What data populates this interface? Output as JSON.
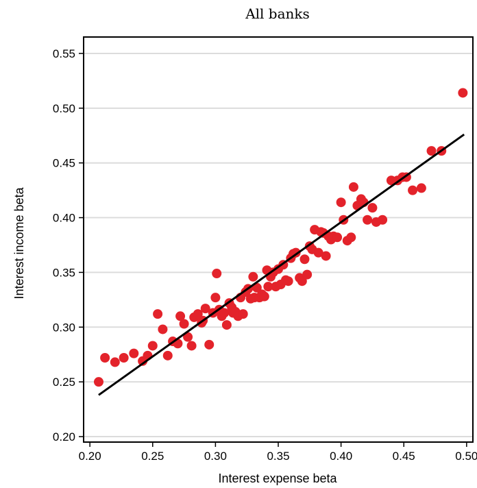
{
  "chart_data": {
    "type": "scatter",
    "title": "All banks",
    "xlabel": "Interest expense beta",
    "ylabel": "Interest income beta",
    "xlim": [
      0.195,
      0.505
    ],
    "ylim": [
      0.195,
      0.565
    ],
    "x_ticks": [
      0.2,
      0.25,
      0.3,
      0.35,
      0.4,
      0.45,
      0.5
    ],
    "x_tick_labels": [
      "0.20",
      "0.25",
      "0.30",
      "0.35",
      "0.40",
      "0.45",
      "0.50"
    ],
    "y_ticks": [
      0.2,
      0.25,
      0.3,
      0.35,
      0.4,
      0.45,
      0.5,
      0.55
    ],
    "y_tick_labels": [
      "0.20",
      "0.25",
      "0.30",
      "0.35",
      "0.40",
      "0.45",
      "0.50",
      "0.55"
    ],
    "grid": "horizontal",
    "point_color": "#e3232b",
    "line_color": "#000000",
    "points": [
      [
        0.207,
        0.25
      ],
      [
        0.212,
        0.272
      ],
      [
        0.22,
        0.268
      ],
      [
        0.227,
        0.272
      ],
      [
        0.235,
        0.276
      ],
      [
        0.242,
        0.269
      ],
      [
        0.246,
        0.274
      ],
      [
        0.25,
        0.283
      ],
      [
        0.254,
        0.312
      ],
      [
        0.258,
        0.298
      ],
      [
        0.262,
        0.274
      ],
      [
        0.266,
        0.287
      ],
      [
        0.27,
        0.285
      ],
      [
        0.272,
        0.31
      ],
      [
        0.275,
        0.303
      ],
      [
        0.278,
        0.291
      ],
      [
        0.281,
        0.283
      ],
      [
        0.283,
        0.309
      ],
      [
        0.286,
        0.312
      ],
      [
        0.289,
        0.304
      ],
      [
        0.29,
        0.306
      ],
      [
        0.292,
        0.317
      ],
      [
        0.295,
        0.284
      ],
      [
        0.298,
        0.313
      ],
      [
        0.3,
        0.327
      ],
      [
        0.301,
        0.349
      ],
      [
        0.303,
        0.316
      ],
      [
        0.305,
        0.31
      ],
      [
        0.307,
        0.313
      ],
      [
        0.309,
        0.302
      ],
      [
        0.311,
        0.322
      ],
      [
        0.313,
        0.318
      ],
      [
        0.314,
        0.313
      ],
      [
        0.316,
        0.314
      ],
      [
        0.318,
        0.31
      ],
      [
        0.32,
        0.327
      ],
      [
        0.322,
        0.312
      ],
      [
        0.324,
        0.332
      ],
      [
        0.326,
        0.335
      ],
      [
        0.328,
        0.326
      ],
      [
        0.33,
        0.346
      ],
      [
        0.331,
        0.327
      ],
      [
        0.333,
        0.336
      ],
      [
        0.335,
        0.327
      ],
      [
        0.337,
        0.33
      ],
      [
        0.339,
        0.328
      ],
      [
        0.341,
        0.352
      ],
      [
        0.342,
        0.337
      ],
      [
        0.344,
        0.346
      ],
      [
        0.346,
        0.35
      ],
      [
        0.348,
        0.337
      ],
      [
        0.35,
        0.353
      ],
      [
        0.352,
        0.339
      ],
      [
        0.354,
        0.357
      ],
      [
        0.356,
        0.343
      ],
      [
        0.358,
        0.342
      ],
      [
        0.36,
        0.363
      ],
      [
        0.362,
        0.367
      ],
      [
        0.364,
        0.368
      ],
      [
        0.367,
        0.345
      ],
      [
        0.369,
        0.342
      ],
      [
        0.371,
        0.362
      ],
      [
        0.373,
        0.348
      ],
      [
        0.375,
        0.374
      ],
      [
        0.377,
        0.371
      ],
      [
        0.379,
        0.389
      ],
      [
        0.382,
        0.368
      ],
      [
        0.384,
        0.387
      ],
      [
        0.386,
        0.386
      ],
      [
        0.388,
        0.365
      ],
      [
        0.39,
        0.383
      ],
      [
        0.392,
        0.38
      ],
      [
        0.394,
        0.383
      ],
      [
        0.397,
        0.382
      ],
      [
        0.4,
        0.414
      ],
      [
        0.402,
        0.398
      ],
      [
        0.405,
        0.379
      ],
      [
        0.408,
        0.382
      ],
      [
        0.41,
        0.428
      ],
      [
        0.413,
        0.411
      ],
      [
        0.416,
        0.417
      ],
      [
        0.418,
        0.414
      ],
      [
        0.421,
        0.398
      ],
      [
        0.425,
        0.409
      ],
      [
        0.428,
        0.396
      ],
      [
        0.433,
        0.398
      ],
      [
        0.44,
        0.434
      ],
      [
        0.445,
        0.434
      ],
      [
        0.449,
        0.437
      ],
      [
        0.452,
        0.437
      ],
      [
        0.457,
        0.425
      ],
      [
        0.464,
        0.427
      ],
      [
        0.472,
        0.461
      ],
      [
        0.48,
        0.461
      ],
      [
        0.497,
        0.514
      ]
    ],
    "fit_line": {
      "x": [
        0.207,
        0.498
      ],
      "y": [
        0.238,
        0.476
      ]
    }
  }
}
